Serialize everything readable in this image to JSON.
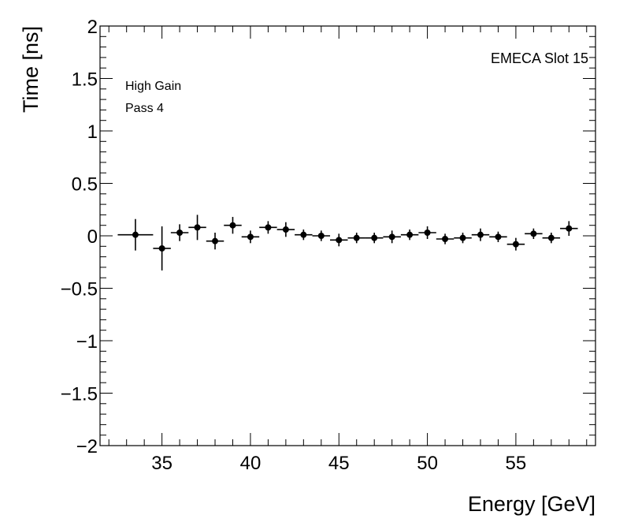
{
  "chart_data": {
    "type": "scatter",
    "title": "",
    "xlabel": "Energy [GeV]",
    "ylabel": "Time [ns]",
    "xlim": [
      31.5,
      59.5
    ],
    "ylim": [
      -2,
      2
    ],
    "x_ticks": [
      35,
      40,
      45,
      50,
      55
    ],
    "x_tick_labels": [
      "35",
      "40",
      "45",
      "50",
      "55"
    ],
    "y_ticks": [
      -2,
      -1.5,
      -1,
      -0.5,
      0,
      0.5,
      1,
      1.5,
      2
    ],
    "y_tick_labels": [
      "−2",
      "−1.5",
      "−1",
      "−0.5",
      "0",
      "0.5",
      "1",
      "1.5",
      "2"
    ],
    "grid": false,
    "annotations": {
      "top_right": "EMECA Slot 15",
      "line1": "High Gain",
      "line2": "Pass 4"
    },
    "series": [
      {
        "name": "EMECA Slot 15",
        "points": [
          {
            "x": 33.5,
            "xlo": 32.5,
            "xhi": 34.5,
            "y": 0.01,
            "yerr": 0.15
          },
          {
            "x": 35.0,
            "xlo": 34.5,
            "xhi": 35.5,
            "y": -0.12,
            "yerr": 0.21
          },
          {
            "x": 36.0,
            "xlo": 35.5,
            "xhi": 36.5,
            "y": 0.03,
            "yerr": 0.08
          },
          {
            "x": 37.0,
            "xlo": 36.5,
            "xhi": 37.5,
            "y": 0.08,
            "yerr": 0.12
          },
          {
            "x": 38.0,
            "xlo": 37.5,
            "xhi": 38.5,
            "y": -0.05,
            "yerr": 0.08
          },
          {
            "x": 39.0,
            "xlo": 38.5,
            "xhi": 39.5,
            "y": 0.1,
            "yerr": 0.08
          },
          {
            "x": 40.0,
            "xlo": 39.5,
            "xhi": 40.5,
            "y": -0.01,
            "yerr": 0.06
          },
          {
            "x": 41.0,
            "xlo": 40.5,
            "xhi": 41.5,
            "y": 0.08,
            "yerr": 0.06
          },
          {
            "x": 42.0,
            "xlo": 41.5,
            "xhi": 42.5,
            "y": 0.06,
            "yerr": 0.07
          },
          {
            "x": 43.0,
            "xlo": 42.5,
            "xhi": 43.5,
            "y": 0.01,
            "yerr": 0.05
          },
          {
            "x": 44.0,
            "xlo": 43.5,
            "xhi": 44.5,
            "y": 0.0,
            "yerr": 0.05
          },
          {
            "x": 45.0,
            "xlo": 44.5,
            "xhi": 45.5,
            "y": -0.04,
            "yerr": 0.06
          },
          {
            "x": 46.0,
            "xlo": 45.5,
            "xhi": 46.5,
            "y": -0.02,
            "yerr": 0.05
          },
          {
            "x": 47.0,
            "xlo": 46.5,
            "xhi": 47.5,
            "y": -0.02,
            "yerr": 0.05
          },
          {
            "x": 48.0,
            "xlo": 47.5,
            "xhi": 48.5,
            "y": -0.01,
            "yerr": 0.06
          },
          {
            "x": 49.0,
            "xlo": 48.5,
            "xhi": 49.5,
            "y": 0.01,
            "yerr": 0.05
          },
          {
            "x": 50.0,
            "xlo": 49.5,
            "xhi": 50.5,
            "y": 0.03,
            "yerr": 0.06
          },
          {
            "x": 51.0,
            "xlo": 50.5,
            "xhi": 51.5,
            "y": -0.03,
            "yerr": 0.05
          },
          {
            "x": 52.0,
            "xlo": 51.5,
            "xhi": 52.5,
            "y": -0.02,
            "yerr": 0.05
          },
          {
            "x": 53.0,
            "xlo": 52.5,
            "xhi": 53.5,
            "y": 0.01,
            "yerr": 0.06
          },
          {
            "x": 54.0,
            "xlo": 53.5,
            "xhi": 54.5,
            "y": -0.01,
            "yerr": 0.05
          },
          {
            "x": 55.0,
            "xlo": 54.5,
            "xhi": 55.5,
            "y": -0.08,
            "yerr": 0.06
          },
          {
            "x": 56.0,
            "xlo": 55.5,
            "xhi": 56.5,
            "y": 0.02,
            "yerr": 0.05
          },
          {
            "x": 57.0,
            "xlo": 56.5,
            "xhi": 57.5,
            "y": -0.02,
            "yerr": 0.05
          },
          {
            "x": 58.0,
            "xlo": 57.5,
            "xhi": 58.5,
            "y": 0.07,
            "yerr": 0.07
          }
        ]
      }
    ]
  }
}
